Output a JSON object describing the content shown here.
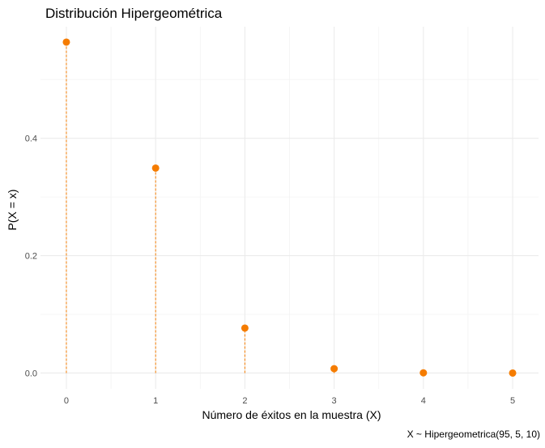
{
  "chart_data": {
    "type": "scatter",
    "title": "Distribución Hipergeométrica",
    "xlabel": "Número de éxitos en la muestra (X)",
    "ylabel": "P(X = x)",
    "caption": "X ~ Hipergeometrica(95, 5, 10)",
    "x": [
      0,
      1,
      2,
      3,
      4,
      5
    ],
    "y": [
      0.5638,
      0.3492,
      0.0766,
      0.0074,
      0.0003,
      0.0
    ],
    "xticks": [
      "0",
      "1",
      "2",
      "3",
      "4",
      "5"
    ],
    "yticks": [
      "0.0",
      "0.2",
      "0.4"
    ],
    "xlim": [
      -0.29,
      5.29
    ],
    "ylim": [
      -0.027,
      0.59
    ],
    "grid": true,
    "color": "#F57C00"
  }
}
